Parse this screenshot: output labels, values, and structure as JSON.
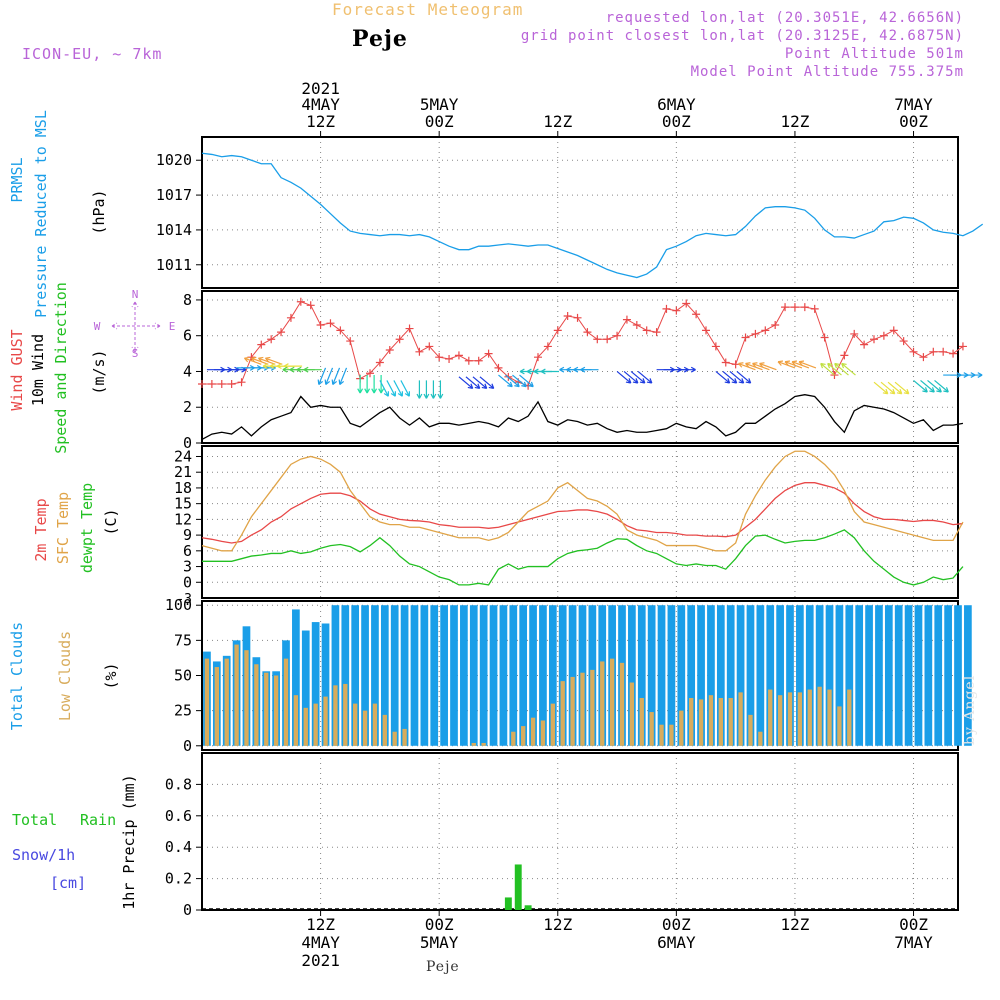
{
  "header": {
    "title": "Forecast Meteogram",
    "place": "Peje",
    "model": "ICON-EU, ~ 7km",
    "requested": "requested lon,lat (20.3051E, 42.6656N)",
    "grid": "grid point closest lon,lat (20.3125E, 42.6875N)",
    "point_alt": "Point Altitude 501m",
    "model_alt": "Model Point Altitude 755.375m",
    "footer": "Peje",
    "watermark": "by Angel"
  },
  "colors": {
    "pressure": "#1a9ee8",
    "gust": "#e84848",
    "wind10": "#000000",
    "temp2m": "#e84848",
    "sfctemp": "#e0a448",
    "dewpt": "#22c022",
    "total_clouds": "#1a9ee8",
    "low_clouds": "#d8ac5c",
    "rain": "#22c022",
    "snow": "#4848e0",
    "legend_purple": "#b964d8"
  },
  "axes": {
    "top_ticks": [
      {
        "x": 12,
        "l1": "2021",
        "l2": "4MAY",
        "l3": "12Z"
      },
      {
        "x": 24,
        "l1": "",
        "l2": "5MAY",
        "l3": "00Z"
      },
      {
        "x": 36,
        "l1": "",
        "l2": "",
        "l3": "12Z"
      },
      {
        "x": 48,
        "l1": "",
        "l2": "6MAY",
        "l3": "00Z"
      },
      {
        "x": 60,
        "l1": "",
        "l2": "",
        "l3": "12Z"
      },
      {
        "x": 72,
        "l1": "",
        "l2": "7MAY",
        "l3": "00Z"
      }
    ],
    "bottom_ticks": [
      {
        "x": 12,
        "l1": "12Z",
        "l2": "4MAY",
        "l3": "2021"
      },
      {
        "x": 24,
        "l1": "00Z",
        "l2": "5MAY",
        "l3": ""
      },
      {
        "x": 36,
        "l1": "12Z",
        "l2": "",
        "l3": ""
      },
      {
        "x": 48,
        "l1": "00Z",
        "l2": "6MAY",
        "l3": ""
      },
      {
        "x": 60,
        "l1": "12Z",
        "l2": "",
        "l3": ""
      },
      {
        "x": 72,
        "l1": "00Z",
        "l2": "7MAY",
        "l3": ""
      }
    ],
    "x_range": [
      0,
      76.5
    ]
  },
  "chart_data": [
    {
      "type": "line",
      "name": "pressure",
      "ylabel_lines": [
        "PRMSL",
        "Pressure Reduced to MSL"
      ],
      "unit": "(hPa)",
      "ylim": [
        1009,
        1022
      ],
      "yticks": [
        1011,
        1014,
        1017,
        1020
      ],
      "series": [
        {
          "name": "PRMSL",
          "values": [
            1020.6,
            1020.5,
            1020.3,
            1020.4,
            1020.3,
            1020.0,
            1019.7,
            1019.7,
            1018.5,
            1018.1,
            1017.6,
            1016.9,
            1016.2,
            1015.4,
            1014.6,
            1013.9,
            1013.7,
            1013.6,
            1013.5,
            1013.6,
            1013.6,
            1013.5,
            1013.6,
            1013.4,
            1013.0,
            1012.6,
            1012.3,
            1012.3,
            1012.6,
            1012.6,
            1012.7,
            1012.8,
            1012.7,
            1012.6,
            1012.7,
            1012.7,
            1012.4,
            1012.1,
            1011.8,
            1011.4,
            1011.0,
            1010.6,
            1010.3,
            1010.1,
            1009.9,
            1010.2,
            1010.8,
            1012.3,
            1012.6,
            1013.0,
            1013.5,
            1013.7,
            1013.6,
            1013.5,
            1013.6,
            1014.3,
            1015.2,
            1015.9,
            1016.0,
            1016.0,
            1015.9,
            1015.7,
            1015.0,
            1014.0,
            1013.4,
            1013.4,
            1013.3,
            1013.6,
            1013.9,
            1014.7,
            1014.8,
            1015.1,
            1015.0,
            1014.6,
            1014.0,
            1013.8,
            1013.7,
            1013.5,
            1013.9,
            1014.5
          ]
        }
      ]
    },
    {
      "type": "line",
      "name": "wind",
      "ylabel_lines": [
        "Wind GUST",
        "10m Wind",
        "Speed and Direction"
      ],
      "unit": "(m/s)",
      "compass": {
        "n": "N",
        "s": "S",
        "w": "W",
        "e": "E"
      },
      "ylim": [
        0,
        8.5
      ],
      "yticks": [
        0,
        2,
        4,
        6,
        8
      ],
      "series": [
        {
          "name": "Wind GUST",
          "values": [
            3.3,
            3.3,
            3.3,
            3.3,
            3.4,
            4.8,
            5.5,
            5.8,
            6.2,
            7.0,
            7.9,
            7.7,
            6.6,
            6.7,
            6.3,
            5.7,
            3.6,
            3.9,
            4.5,
            5.2,
            5.8,
            6.4,
            5.1,
            5.4,
            4.8,
            4.7,
            4.9,
            4.6,
            4.6,
            5.0,
            4.2,
            3.7,
            3.4,
            3.2,
            4.8,
            5.4,
            6.3,
            7.1,
            7.0,
            6.2,
            5.8,
            5.8,
            6.0,
            6.9,
            6.6,
            6.3,
            6.2,
            7.5,
            7.4,
            7.8,
            7.2,
            6.3,
            5.4,
            4.5,
            4.4,
            5.9,
            6.1,
            6.3,
            6.6,
            7.6,
            7.6,
            7.6,
            7.5,
            5.9,
            3.8,
            4.9,
            6.1,
            5.5,
            5.8,
            6.0,
            6.3,
            5.7,
            5.1,
            4.8,
            5.1,
            5.1,
            5.0,
            5.4
          ]
        },
        {
          "name": "10m Wind",
          "values": [
            0.2,
            0.5,
            0.6,
            0.5,
            0.9,
            0.4,
            0.9,
            1.3,
            1.5,
            1.7,
            2.6,
            2.0,
            2.1,
            2.0,
            2.0,
            1.1,
            0.9,
            1.3,
            1.7,
            2.0,
            1.4,
            1.0,
            1.4,
            0.9,
            1.1,
            1.1,
            1.0,
            1.1,
            1.2,
            1.1,
            0.9,
            1.4,
            1.2,
            1.5,
            2.3,
            1.2,
            1.0,
            1.3,
            1.2,
            1.0,
            1.1,
            0.8,
            0.6,
            0.7,
            0.6,
            0.6,
            0.7,
            0.8,
            1.1,
            0.9,
            0.8,
            1.2,
            0.9,
            0.4,
            0.6,
            1.1,
            1.1,
            1.5,
            1.9,
            2.2,
            2.6,
            2.7,
            2.6,
            2.0,
            1.2,
            0.6,
            1.8,
            2.1,
            2.0,
            1.9,
            1.7,
            1.4,
            1.1,
            1.3,
            0.7,
            1.0,
            1.0,
            1.1
          ]
        }
      ]
    },
    {
      "type": "line",
      "name": "temperature",
      "ylabel_lines": [
        "2m Temp",
        "SFC Temp",
        "dewpt Temp"
      ],
      "unit": "(C)",
      "ylim": [
        -3,
        26
      ],
      "yticks": [
        0,
        3,
        6,
        9,
        12,
        15,
        18,
        21,
        24
      ],
      "extra_ticks": [
        -3
      ],
      "series": [
        {
          "name": "2m Temp",
          "values": [
            8.5,
            8.2,
            7.8,
            7.5,
            7.8,
            9.0,
            10.0,
            11.5,
            12.5,
            14.0,
            15.0,
            16.0,
            16.8,
            17.0,
            17.0,
            16.5,
            15.5,
            14.0,
            13.0,
            12.5,
            12.0,
            11.8,
            11.7,
            11.5,
            11.0,
            10.8,
            10.5,
            10.5,
            10.5,
            10.3,
            10.5,
            11.0,
            11.5,
            12.0,
            12.5,
            13.0,
            13.5,
            13.6,
            13.8,
            13.8,
            13.5,
            13.0,
            12.0,
            10.8,
            10.0,
            9.8,
            9.5,
            9.5,
            9.3,
            9.0,
            9.0,
            8.8,
            8.8,
            8.7,
            9.0,
            10.5,
            12.0,
            14.0,
            16.0,
            17.5,
            18.5,
            19.0,
            19.0,
            18.5,
            18.0,
            17.0,
            15.0,
            13.5,
            12.5,
            12.0,
            12.0,
            11.8,
            11.6,
            11.8,
            11.8,
            11.5,
            11.0,
            11.2
          ]
        },
        {
          "name": "SFC Temp",
          "values": [
            7.0,
            6.5,
            6.0,
            6.0,
            9.0,
            12.5,
            15.0,
            17.5,
            20.0,
            22.5,
            23.5,
            24.0,
            23.5,
            22.5,
            21.0,
            17.5,
            15.0,
            12.5,
            11.5,
            11.0,
            11.0,
            10.5,
            10.5,
            10.0,
            9.5,
            9.0,
            8.5,
            8.5,
            8.5,
            8.0,
            8.5,
            9.5,
            11.5,
            13.5,
            14.5,
            15.5,
            18.0,
            19.0,
            17.5,
            16.0,
            15.5,
            14.5,
            13.0,
            10.0,
            9.0,
            8.5,
            8.0,
            7.0,
            7.0,
            7.0,
            7.0,
            6.5,
            6.0,
            6.0,
            7.5,
            13.0,
            16.5,
            19.5,
            22.0,
            24.0,
            25.0,
            25.0,
            24.0,
            22.5,
            20.5,
            17.5,
            13.5,
            11.5,
            11.0,
            10.5,
            10.0,
            9.5,
            9.0,
            8.5,
            8.0,
            8.0,
            8.0,
            11.5
          ]
        },
        {
          "name": "dewpt Temp",
          "values": [
            4.0,
            4.0,
            4.0,
            4.0,
            4.5,
            5.0,
            5.2,
            5.5,
            5.5,
            6.0,
            5.5,
            5.8,
            6.5,
            7.0,
            7.2,
            6.8,
            5.8,
            7.0,
            8.5,
            7.0,
            5.0,
            3.5,
            3.0,
            2.0,
            1.0,
            0.5,
            -0.5,
            -0.5,
            -0.2,
            -0.5,
            2.5,
            3.5,
            2.5,
            3.0,
            3.0,
            3.0,
            4.5,
            5.5,
            6.0,
            6.2,
            6.5,
            7.5,
            8.3,
            8.2,
            7.0,
            6.0,
            5.5,
            4.5,
            3.5,
            3.2,
            3.5,
            3.2,
            3.2,
            2.5,
            4.5,
            7.0,
            8.8,
            9.0,
            8.2,
            7.5,
            7.8,
            8.0,
            8.0,
            8.5,
            9.2,
            10.0,
            8.5,
            6.0,
            4.0,
            2.5,
            1.0,
            0.0,
            -0.5,
            0.0,
            1.0,
            0.5,
            0.8,
            3.0
          ]
        }
      ]
    },
    {
      "type": "bar",
      "name": "clouds",
      "ylabel_lines": [
        "Total Clouds",
        "Low Clouds"
      ],
      "unit": "(%)",
      "ylim": [
        -3,
        103
      ],
      "yticks": [
        0,
        25,
        50,
        75,
        100
      ],
      "series": [
        {
          "name": "Total Clouds",
          "values": [
            67,
            60,
            64,
            75,
            85,
            63,
            53,
            53,
            75,
            97,
            82,
            88,
            87,
            100,
            100,
            100,
            100,
            100,
            100,
            100,
            100,
            100,
            100,
            100,
            100,
            100,
            100,
            100,
            100,
            100,
            100,
            100,
            100,
            100,
            100,
            100,
            100,
            100,
            100,
            100,
            100,
            100,
            100,
            100,
            100,
            100,
            100,
            100,
            100,
            100,
            100,
            100,
            100,
            100,
            100,
            100,
            100,
            100,
            100,
            100,
            100,
            100,
            100,
            100,
            100,
            100,
            100,
            100,
            100,
            100,
            100,
            100,
            100,
            100,
            100,
            100,
            100,
            100
          ]
        },
        {
          "name": "Low Clouds",
          "values": [
            62,
            56,
            62,
            72,
            68,
            58,
            52,
            50,
            62,
            36,
            27,
            30,
            35,
            43,
            44,
            30,
            25,
            30,
            22,
            10,
            12,
            0,
            0,
            0,
            0,
            0,
            0,
            2,
            2,
            0,
            0,
            10,
            14,
            20,
            18,
            30,
            46,
            49,
            52,
            54,
            60,
            62,
            59,
            45,
            34,
            24,
            15,
            15,
            25,
            34,
            33,
            36,
            34,
            34,
            38,
            22,
            10,
            40,
            36,
            38,
            38,
            40,
            42,
            40,
            28,
            40,
            0,
            0,
            0,
            0,
            0,
            0,
            0,
            0,
            0,
            0,
            0,
            0
          ]
        }
      ]
    },
    {
      "type": "bar",
      "name": "precip",
      "legend": [
        "Total",
        "Rain",
        "Snow/1h",
        "[cm]"
      ],
      "ylabel": "1hr Precip (mm)",
      "ylim": [
        0,
        1.0
      ],
      "yticks": [
        "0",
        "0.2",
        "0.4",
        "0.6",
        "0.8"
      ],
      "series": [
        {
          "name": "Total Rain",
          "values": [
            0,
            0,
            0,
            0,
            0,
            0,
            0,
            0,
            0,
            0,
            0,
            0,
            0,
            0,
            0,
            0,
            0,
            0,
            0,
            0,
            0,
            0,
            0,
            0,
            0,
            0,
            0,
            0,
            0,
            0,
            0,
            0.08,
            0.29,
            0.03,
            0,
            0,
            0,
            0,
            0,
            0,
            0,
            0,
            0,
            0,
            0,
            0,
            0,
            0,
            0,
            0,
            0,
            0,
            0,
            0,
            0,
            0,
            0,
            0,
            0,
            0,
            0,
            0,
            0,
            0,
            0,
            0,
            0,
            0,
            0,
            0,
            0,
            0,
            0,
            0,
            0,
            0,
            0,
            0
          ]
        }
      ]
    }
  ],
  "wind_arrows": [
    {
      "x": 0.5,
      "y": 4.1,
      "dir": "E",
      "color": "#1e3ce0"
    },
    {
      "x": 3.5,
      "y": 4.2,
      "dir": "E",
      "color": "#1ea0e8"
    },
    {
      "x": 6,
      "y": 4.4,
      "dir": "WNW",
      "color": "#f0a040"
    },
    {
      "x": 8,
      "y": 4.3,
      "dir": "W",
      "color": "#e8e040"
    },
    {
      "x": 10,
      "y": 4.1,
      "dir": "W",
      "color": "#50d050"
    },
    {
      "x": 12.5,
      "y": 4.2,
      "dir": "SSW",
      "color": "#1ea0e8"
    },
    {
      "x": 16,
      "y": 3.8,
      "dir": "S",
      "color": "#20e0a0"
    },
    {
      "x": 18,
      "y": 3.5,
      "dir": "SSE",
      "color": "#20c0e0"
    },
    {
      "x": 22,
      "y": 3.5,
      "dir": "S",
      "color": "#20c0c0"
    },
    {
      "x": 26,
      "y": 3.7,
      "dir": "SE",
      "color": "#1e3ce0"
    },
    {
      "x": 30,
      "y": 3.8,
      "dir": "SE",
      "color": "#1ea0e8"
    },
    {
      "x": 34,
      "y": 4.0,
      "dir": "W",
      "color": "#20c0c0"
    },
    {
      "x": 38,
      "y": 4.1,
      "dir": "W",
      "color": "#1ea0e8"
    },
    {
      "x": 42,
      "y": 4.0,
      "dir": "SE",
      "color": "#1e3ce0"
    },
    {
      "x": 46,
      "y": 4.1,
      "dir": "E",
      "color": "#1e3ce0"
    },
    {
      "x": 52,
      "y": 4.0,
      "dir": "SE",
      "color": "#1e3ce0"
    },
    {
      "x": 56,
      "y": 4.1,
      "dir": "WNW",
      "color": "#f0a040"
    },
    {
      "x": 60,
      "y": 4.2,
      "dir": "WNW",
      "color": "#f0a040"
    },
    {
      "x": 64,
      "y": 3.8,
      "dir": "NW",
      "color": "#c0e040"
    },
    {
      "x": 68,
      "y": 3.4,
      "dir": "SE",
      "color": "#e8e040"
    },
    {
      "x": 72,
      "y": 3.5,
      "dir": "SE",
      "color": "#20c0c0"
    },
    {
      "x": 75,
      "y": 3.8,
      "dir": "E",
      "color": "#1ea0e8"
    }
  ]
}
